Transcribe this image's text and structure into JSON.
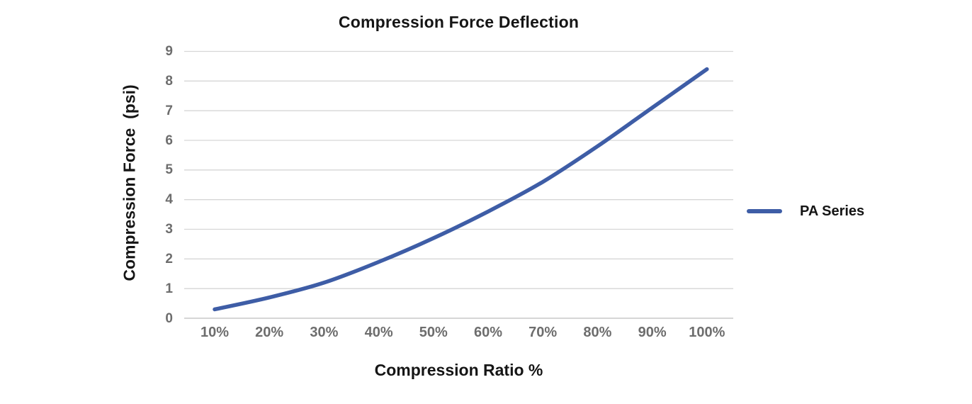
{
  "chart_data": {
    "type": "line",
    "title": "Compression Force Deflection",
    "xlabel": "Compression Ratio %",
    "ylabel": "Compression Force  (psi)",
    "categories": [
      "10%",
      "20%",
      "30%",
      "40%",
      "50%",
      "60%",
      "70%",
      "80%",
      "90%",
      "100%"
    ],
    "series": [
      {
        "name": "PA Series",
        "values": [
          0.3,
          0.7,
          1.2,
          1.9,
          2.7,
          3.6,
          4.6,
          5.8,
          7.1,
          8.4
        ]
      }
    ],
    "ylim": [
      0,
      9
    ],
    "yticks": [
      0,
      1,
      2,
      3,
      4,
      5,
      6,
      7,
      8,
      9
    ],
    "grid": true,
    "legend_position": "right"
  },
  "legend": {
    "label": "PA Series"
  },
  "colors": {
    "series_line": "#3e5da6",
    "gridline": "#d6d6d6",
    "axis_line": "#bdbdbd",
    "tick_text": "#6d6d6d",
    "title_text": "#151515",
    "background": "#ffffff"
  }
}
